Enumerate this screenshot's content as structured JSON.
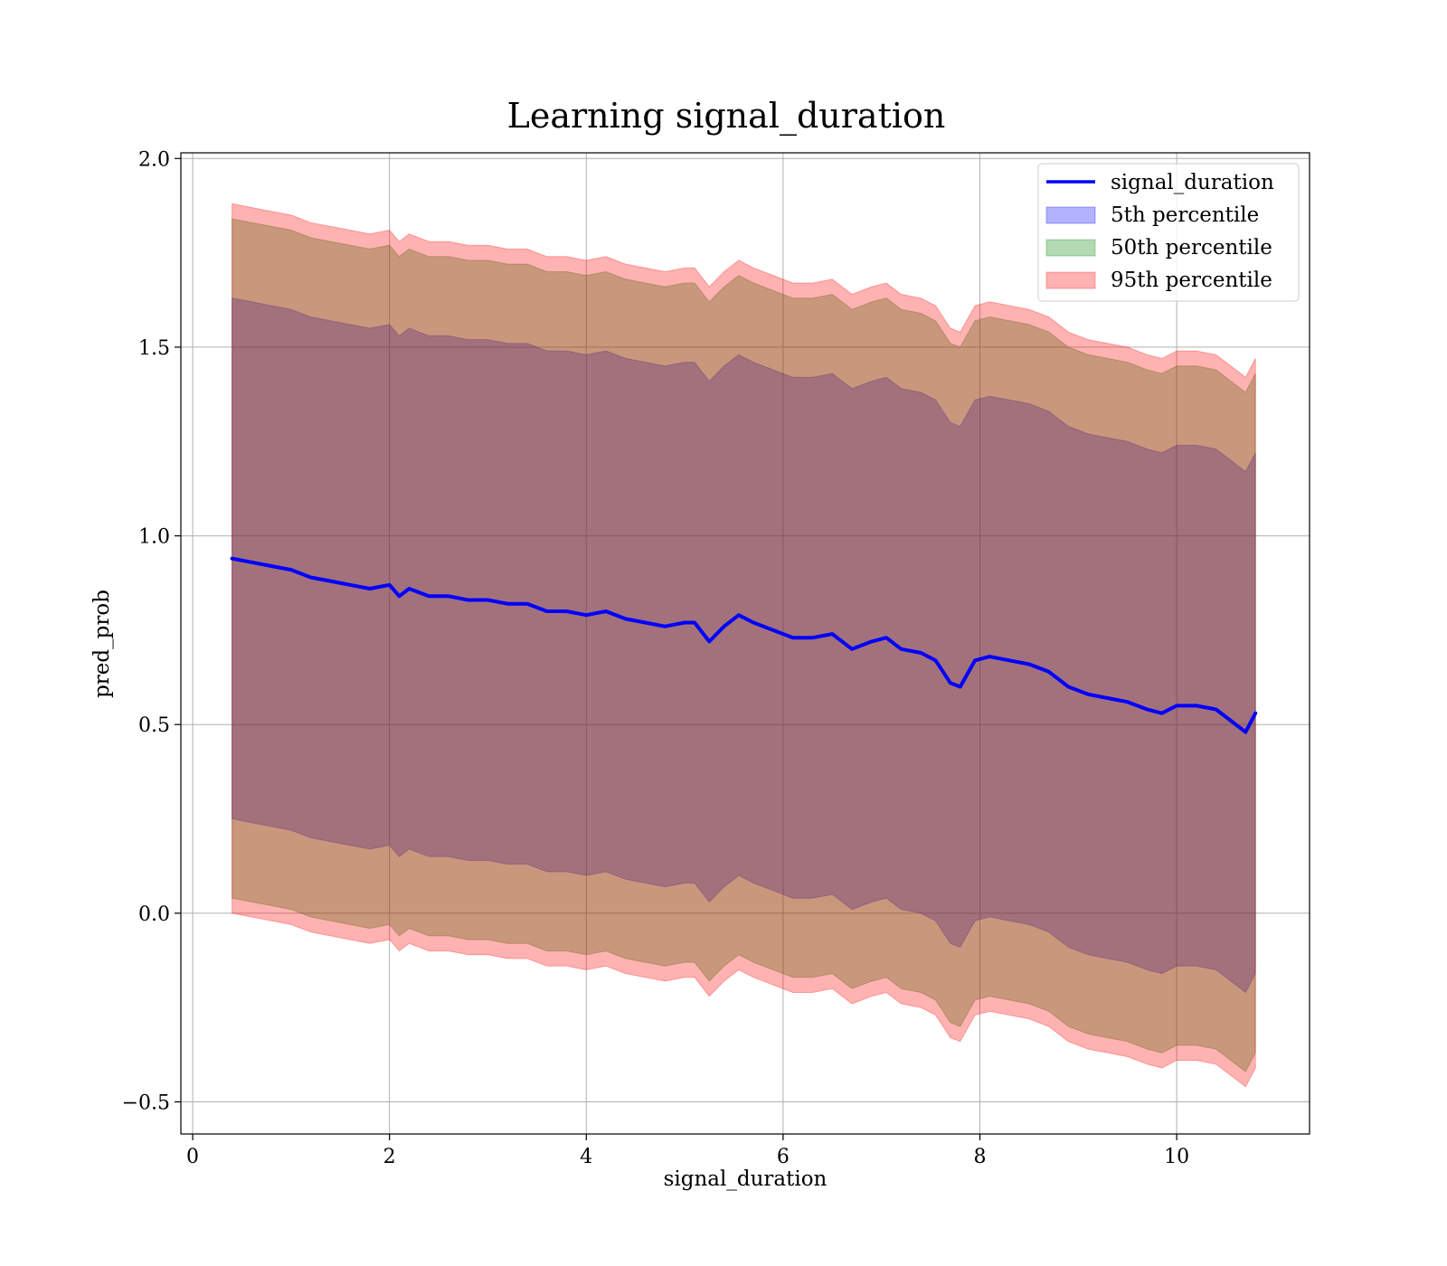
{
  "chart_data": {
    "type": "area",
    "title": "Learning signal_duration",
    "xlabel": "signal_duration",
    "ylabel": "pred_prob",
    "xlim": [
      -0.12,
      11.35
    ],
    "ylim": [
      -0.585,
      2.015
    ],
    "xticks": [
      0,
      2,
      4,
      6,
      8,
      10
    ],
    "xtick_labels": [
      "0",
      "2",
      "4",
      "6",
      "8",
      "10"
    ],
    "yticks": [
      -0.5,
      0.0,
      0.5,
      1.0,
      1.5,
      2.0
    ],
    "ytick_labels": [
      "−0.5",
      "0.0",
      "0.5",
      "1.0",
      "1.5",
      "2.0"
    ],
    "grid": true,
    "legend_position": "top-right",
    "x": [
      0.4,
      0.6,
      0.8,
      1.0,
      1.2,
      1.4,
      1.6,
      1.8,
      2.0,
      2.1,
      2.2,
      2.4,
      2.6,
      2.8,
      3.0,
      3.2,
      3.4,
      3.6,
      3.8,
      4.0,
      4.2,
      4.4,
      4.6,
      4.8,
      5.0,
      5.1,
      5.25,
      5.4,
      5.55,
      5.7,
      5.9,
      6.1,
      6.3,
      6.5,
      6.7,
      6.9,
      7.05,
      7.2,
      7.4,
      7.55,
      7.7,
      7.8,
      7.95,
      8.1,
      8.3,
      8.5,
      8.7,
      8.9,
      9.1,
      9.3,
      9.5,
      9.7,
      9.85,
      10.0,
      10.2,
      10.4,
      10.55,
      10.7,
      10.8
    ],
    "series": [
      {
        "name": "signal_duration",
        "kind": "line",
        "color": "#0000ff",
        "values": [
          0.94,
          0.93,
          0.92,
          0.91,
          0.89,
          0.88,
          0.87,
          0.86,
          0.87,
          0.84,
          0.86,
          0.84,
          0.84,
          0.83,
          0.83,
          0.82,
          0.82,
          0.8,
          0.8,
          0.79,
          0.8,
          0.78,
          0.77,
          0.76,
          0.77,
          0.77,
          0.72,
          0.76,
          0.79,
          0.77,
          0.75,
          0.73,
          0.73,
          0.74,
          0.7,
          0.72,
          0.73,
          0.7,
          0.69,
          0.67,
          0.61,
          0.6,
          0.67,
          0.68,
          0.67,
          0.66,
          0.64,
          0.6,
          0.58,
          0.57,
          0.56,
          0.54,
          0.53,
          0.55,
          0.55,
          0.54,
          0.51,
          0.48,
          0.53
        ]
      },
      {
        "name": "5th percentile",
        "kind": "band",
        "color": "#0000ff",
        "upper": [
          1.63,
          1.62,
          1.61,
          1.6,
          1.58,
          1.57,
          1.56,
          1.55,
          1.56,
          1.53,
          1.55,
          1.53,
          1.53,
          1.52,
          1.52,
          1.51,
          1.51,
          1.49,
          1.49,
          1.48,
          1.49,
          1.47,
          1.46,
          1.45,
          1.46,
          1.46,
          1.41,
          1.45,
          1.48,
          1.46,
          1.44,
          1.42,
          1.42,
          1.43,
          1.39,
          1.41,
          1.42,
          1.39,
          1.38,
          1.36,
          1.3,
          1.29,
          1.36,
          1.37,
          1.36,
          1.35,
          1.33,
          1.29,
          1.27,
          1.26,
          1.25,
          1.23,
          1.22,
          1.24,
          1.24,
          1.23,
          1.2,
          1.17,
          1.22
        ],
        "lower": [
          0.25,
          0.24,
          0.23,
          0.22,
          0.2,
          0.19,
          0.18,
          0.17,
          0.18,
          0.15,
          0.17,
          0.15,
          0.15,
          0.14,
          0.14,
          0.13,
          0.13,
          0.11,
          0.11,
          0.1,
          0.11,
          0.09,
          0.08,
          0.07,
          0.08,
          0.08,
          0.03,
          0.07,
          0.1,
          0.08,
          0.06,
          0.04,
          0.04,
          0.05,
          0.01,
          0.03,
          0.04,
          0.01,
          0.0,
          -0.02,
          -0.08,
          -0.09,
          -0.02,
          -0.01,
          -0.02,
          -0.03,
          -0.05,
          -0.09,
          -0.11,
          -0.12,
          -0.13,
          -0.15,
          -0.16,
          -0.14,
          -0.14,
          -0.15,
          -0.18,
          -0.21,
          -0.16
        ]
      },
      {
        "name": "50th percentile",
        "kind": "band",
        "color": "#008000",
        "upper": [
          1.84,
          1.83,
          1.82,
          1.81,
          1.79,
          1.78,
          1.77,
          1.76,
          1.77,
          1.74,
          1.76,
          1.74,
          1.74,
          1.73,
          1.73,
          1.72,
          1.72,
          1.7,
          1.7,
          1.69,
          1.7,
          1.68,
          1.67,
          1.66,
          1.67,
          1.67,
          1.62,
          1.66,
          1.69,
          1.67,
          1.65,
          1.63,
          1.63,
          1.64,
          1.6,
          1.62,
          1.63,
          1.6,
          1.59,
          1.57,
          1.51,
          1.5,
          1.57,
          1.58,
          1.57,
          1.56,
          1.54,
          1.5,
          1.48,
          1.47,
          1.46,
          1.44,
          1.43,
          1.45,
          1.45,
          1.44,
          1.41,
          1.38,
          1.43
        ],
        "lower": [
          0.04,
          0.03,
          0.02,
          0.01,
          -0.01,
          -0.02,
          -0.03,
          -0.04,
          -0.03,
          -0.06,
          -0.04,
          -0.06,
          -0.06,
          -0.07,
          -0.07,
          -0.08,
          -0.08,
          -0.1,
          -0.1,
          -0.11,
          -0.1,
          -0.12,
          -0.13,
          -0.14,
          -0.13,
          -0.13,
          -0.18,
          -0.14,
          -0.11,
          -0.13,
          -0.15,
          -0.17,
          -0.17,
          -0.16,
          -0.2,
          -0.18,
          -0.17,
          -0.2,
          -0.21,
          -0.23,
          -0.29,
          -0.3,
          -0.23,
          -0.22,
          -0.23,
          -0.24,
          -0.26,
          -0.3,
          -0.32,
          -0.33,
          -0.34,
          -0.36,
          -0.37,
          -0.35,
          -0.35,
          -0.36,
          -0.39,
          -0.42,
          -0.37
        ]
      },
      {
        "name": "95th percentile",
        "kind": "band",
        "color": "#ff0000",
        "upper": [
          1.88,
          1.87,
          1.86,
          1.85,
          1.83,
          1.82,
          1.81,
          1.8,
          1.81,
          1.78,
          1.8,
          1.78,
          1.78,
          1.77,
          1.77,
          1.76,
          1.76,
          1.74,
          1.74,
          1.73,
          1.74,
          1.72,
          1.71,
          1.7,
          1.71,
          1.71,
          1.66,
          1.7,
          1.73,
          1.71,
          1.69,
          1.67,
          1.67,
          1.68,
          1.64,
          1.66,
          1.67,
          1.64,
          1.63,
          1.61,
          1.55,
          1.54,
          1.61,
          1.62,
          1.61,
          1.6,
          1.58,
          1.54,
          1.52,
          1.51,
          1.5,
          1.48,
          1.47,
          1.49,
          1.49,
          1.48,
          1.45,
          1.42,
          1.47
        ],
        "lower": [
          0.0,
          -0.01,
          -0.02,
          -0.03,
          -0.05,
          -0.06,
          -0.07,
          -0.08,
          -0.07,
          -0.1,
          -0.08,
          -0.1,
          -0.1,
          -0.11,
          -0.11,
          -0.12,
          -0.12,
          -0.14,
          -0.14,
          -0.15,
          -0.14,
          -0.16,
          -0.17,
          -0.18,
          -0.17,
          -0.17,
          -0.22,
          -0.18,
          -0.15,
          -0.17,
          -0.19,
          -0.21,
          -0.21,
          -0.2,
          -0.24,
          -0.22,
          -0.21,
          -0.24,
          -0.25,
          -0.27,
          -0.33,
          -0.34,
          -0.27,
          -0.26,
          -0.27,
          -0.28,
          -0.3,
          -0.34,
          -0.36,
          -0.37,
          -0.38,
          -0.4,
          -0.41,
          -0.39,
          -0.39,
          -0.4,
          -0.43,
          -0.46,
          -0.41
        ]
      }
    ]
  }
}
